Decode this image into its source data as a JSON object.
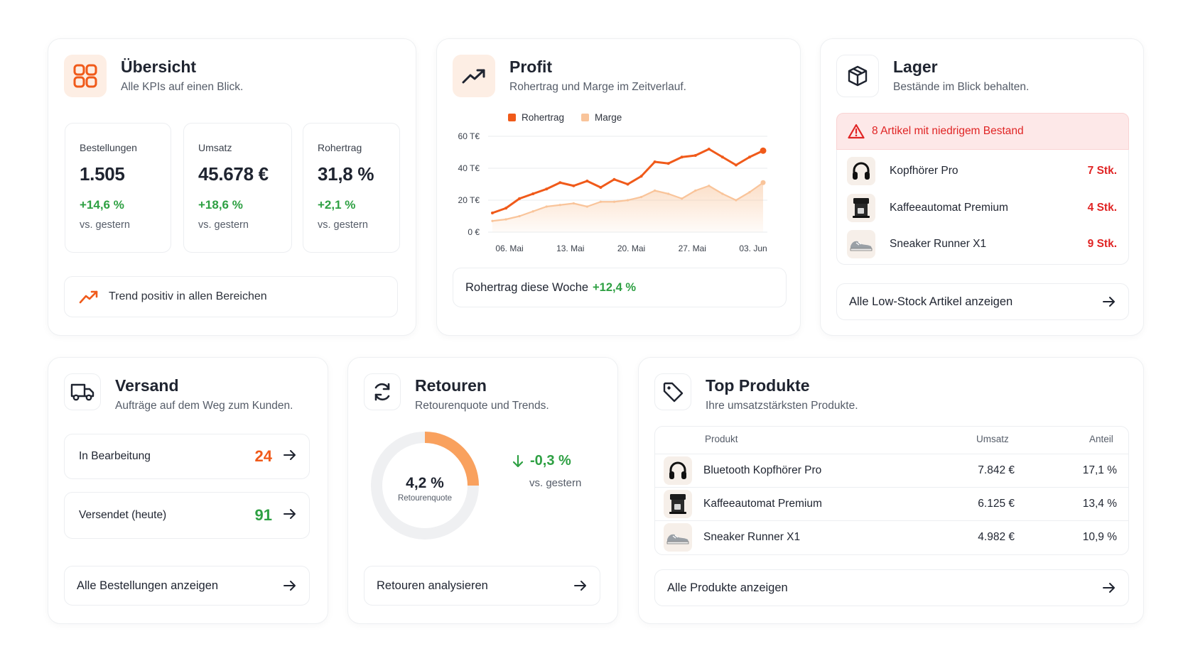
{
  "overview": {
    "title": "Übersicht",
    "subtitle": "Alle KPIs auf einen Blick.",
    "icon": "grid-icon",
    "kpis": [
      {
        "label": "Bestellungen",
        "value": "1.505",
        "delta": "+14,6 %",
        "note": "vs. gestern"
      },
      {
        "label": "Umsatz",
        "value": "45.678 €",
        "delta": "+18,6 %",
        "note": "vs. gestern"
      },
      {
        "label": "Rohertrag",
        "value": "31,8 %",
        "delta": "+2,1 %",
        "note": "vs. gestern"
      }
    ],
    "trend_text": "Trend positiv in allen Bereichen"
  },
  "profit": {
    "title": "Profit",
    "subtitle": "Rohertrag und Marge im Zeitverlauf.",
    "summary_label": "Rohertrag diese Woche",
    "summary_value": "+12,4 %"
  },
  "chart_data": {
    "type": "line",
    "title": "",
    "xlabel": "",
    "ylabel": "",
    "x_tick_labels": [
      "06. Mai",
      "13. Mai",
      "20. Mai",
      "27. Mai",
      "03. Jun"
    ],
    "y_tick_labels": [
      "0 €",
      "20 T€",
      "40 T€",
      "60 T€"
    ],
    "ylim": [
      0,
      60
    ],
    "legend_position": "top-left",
    "grid": "horizontal",
    "series": [
      {
        "name": "Rohertrag",
        "color": "#f05a1a",
        "values": [
          12,
          15,
          21,
          24,
          27,
          31,
          29,
          32,
          28,
          33,
          30,
          35,
          44,
          43,
          47,
          48,
          52,
          47,
          42,
          47,
          51
        ]
      },
      {
        "name": "Marge",
        "color": "#f9c49a",
        "values": [
          7,
          8,
          10,
          13,
          16,
          17,
          18,
          16,
          19,
          19,
          20,
          22,
          26,
          24,
          21,
          26,
          29,
          24,
          20,
          25,
          31
        ]
      }
    ]
  },
  "lager": {
    "title": "Lager",
    "subtitle": "Bestände im Blick behalten.",
    "alert": "8 Artikel mit niedrigem Bestand",
    "items": [
      {
        "name": "Kopfhörer Pro",
        "qty": "7 Stk.",
        "icon": "headphones-icon"
      },
      {
        "name": "Kaffeeautomat Premium",
        "qty": "4 Stk.",
        "icon": "coffee-machine-icon"
      },
      {
        "name": "Sneaker Runner X1",
        "qty": "9 Stk.",
        "icon": "sneaker-icon"
      }
    ],
    "link": "Alle Low-Stock Artikel anzeigen"
  },
  "versand": {
    "title": "Versand",
    "subtitle": "Aufträge auf dem Weg zum Kunden.",
    "rows": [
      {
        "label": "In Bearbeitung",
        "count": "24",
        "color": "#f05a1a"
      },
      {
        "label": "Versendet (heute)",
        "count": "91",
        "color": "#2ea043"
      }
    ],
    "link": "Alle Bestellungen anzeigen"
  },
  "retouren": {
    "title": "Retouren",
    "subtitle": "Retourenquote und Trends.",
    "rate_value": "4,2 %",
    "rate_fraction": 0.25,
    "rate_label": "Retourenquote",
    "delta": "-0,3 %",
    "delta_note": "vs. gestern",
    "link": "Retouren analysieren"
  },
  "top_produkte": {
    "title": "Top Produkte",
    "subtitle": "Ihre umsatzstärksten Produkte.",
    "columns": {
      "product": "Produkt",
      "revenue": "Umsatz",
      "share": "Anteil"
    },
    "rows": [
      {
        "name": "Bluetooth Kopfhörer Pro",
        "revenue": "7.842 €",
        "share": "17,1 %",
        "icon": "headphones-icon"
      },
      {
        "name": "Kaffeeautomat Premium",
        "revenue": "6.125 €",
        "share": "13,4 %",
        "icon": "coffee-machine-icon"
      },
      {
        "name": "Sneaker Runner X1",
        "revenue": "4.982 €",
        "share": "10,9 %",
        "icon": "sneaker-icon"
      }
    ],
    "link": "Alle Produkte anzeigen"
  }
}
